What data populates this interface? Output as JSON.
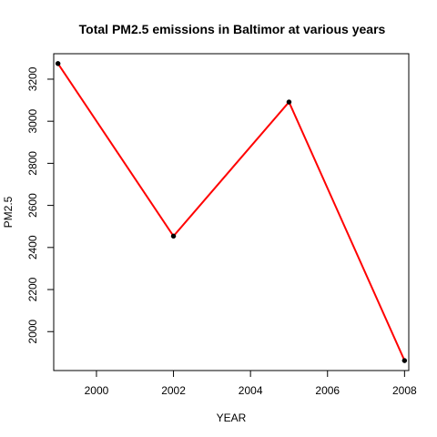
{
  "chart_data": {
    "type": "line",
    "title": "Total PM2.5 emissions in Baltimor at various years",
    "xlabel": "YEAR",
    "ylabel": "PM2.5",
    "x": [
      1999,
      2002,
      2005,
      2008
    ],
    "series": [
      {
        "values": [
          3274.18,
          2453.92,
          3091.35,
          1862.28
        ],
        "color": "#ff0000"
      }
    ],
    "point_color": "#000000",
    "xlim": [
      1998.89,
      2008.11
    ],
    "ylim": [
      1815.0,
      3321.0
    ],
    "x_ticks": [
      2000,
      2002,
      2004,
      2006,
      2008
    ],
    "y_ticks": [
      2000,
      2200,
      2400,
      2600,
      2800,
      3000,
      3200
    ],
    "x_tick_labels": [
      "2000",
      "2002",
      "2004",
      "2006",
      "2008"
    ],
    "y_tick_labels": [
      "2000",
      "2200",
      "2400",
      "2600",
      "2800",
      "3000",
      "3200"
    ],
    "grid": false,
    "legend": "none"
  }
}
